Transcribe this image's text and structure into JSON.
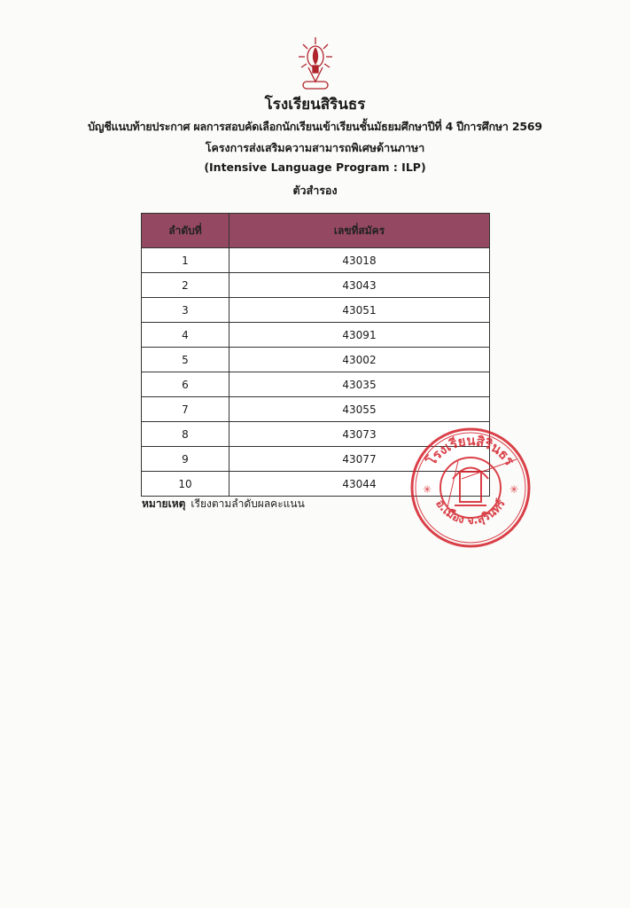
{
  "header": {
    "school_name": "โรงเรียนสิรินธร",
    "subtitle": "บัญชีแนบท้ายประกาศ ผลการสอบคัดเลือกนักเรียนเข้าเรียนชั้นมัธยมศึกษาปีที่ 4 ปีการศึกษา 2569",
    "program_th": "โครงการส่งเสริมความสามารถพิเศษด้านภาษา",
    "program_en": "(Intensive Language Program : ILP)",
    "list_type": "ตัวสำรอง",
    "logo_text": "โรงเรียนสิรินธร"
  },
  "table": {
    "header_color": "#944862",
    "columns": [
      "ลำดับที่",
      "เลขที่สมัคร"
    ],
    "rows": [
      [
        "1",
        "43018"
      ],
      [
        "2",
        "43043"
      ],
      [
        "3",
        "43051"
      ],
      [
        "4",
        "43091"
      ],
      [
        "5",
        "43002"
      ],
      [
        "6",
        "43035"
      ],
      [
        "7",
        "43055"
      ],
      [
        "8",
        "43073"
      ],
      [
        "9",
        "43077"
      ],
      [
        "10",
        "43044"
      ]
    ]
  },
  "note": {
    "label": "หมายเหตุ",
    "text": "เรียงตามลำดับผลคะแนน"
  },
  "stamp": {
    "top_text": "โรงเรียนสิรินธร",
    "bottom_text": "อ.เมือง จ.สุรินทร์",
    "color": "#d4202a"
  }
}
